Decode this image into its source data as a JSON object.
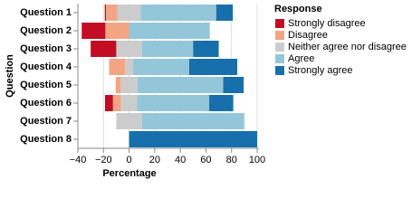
{
  "chart_data": {
    "type": "diverging_bar",
    "categories": [
      "Question 1",
      "Question 2",
      "Question 3",
      "Question 4",
      "Question 5",
      "Question 6",
      "Question 7",
      "Question 8"
    ],
    "series": [
      {
        "name": "Strongly disagree",
        "color": "#c30d24",
        "values": [
          1,
          18.5,
          20,
          0,
          0,
          6.3,
          0,
          0
        ]
      },
      {
        "name": "Disagree",
        "color": "#f3a583",
        "values": [
          9,
          18.5,
          0,
          12.5,
          4,
          6.3,
          0,
          0
        ]
      },
      {
        "name": "Neither agree nor disagree",
        "color": "#cccccc",
        "values": [
          18,
          0,
          20,
          6.3,
          13,
          12.5,
          20,
          0
        ]
      },
      {
        "name": "Agree",
        "color": "#94c6da",
        "values": [
          59,
          63,
          40,
          43.8,
          67,
          56.3,
          80,
          0
        ]
      },
      {
        "name": "Strongly agree",
        "color": "#1770ab",
        "values": [
          13,
          0,
          20,
          37.5,
          16,
          18.8,
          0,
          100
        ]
      }
    ],
    "xlim": [
      -40,
      100
    ],
    "xticks": [
      {
        "value": -40,
        "label": "−40"
      },
      {
        "value": -20,
        "label": "−20"
      },
      0,
      20,
      40,
      60,
      80,
      100
    ],
    "x_label": "Percentage",
    "y_label": "Question",
    "legend_title": "Response",
    "grid": true
  }
}
